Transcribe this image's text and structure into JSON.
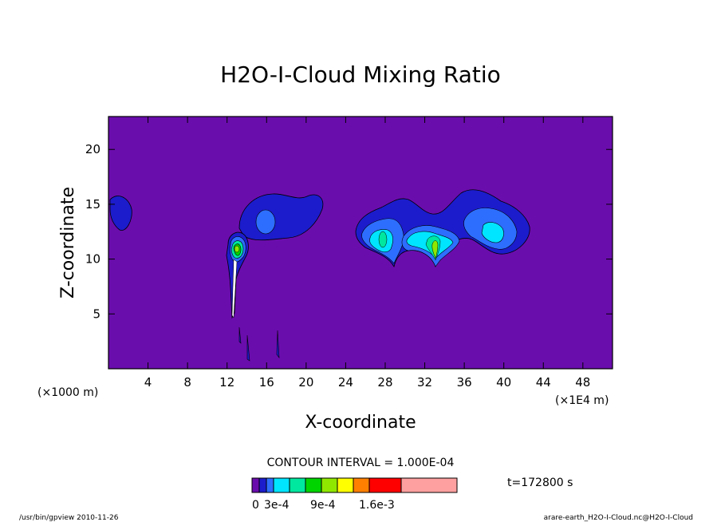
{
  "chart_data": {
    "type": "heatmap",
    "title": "H2O-I-Cloud Mixing Ratio",
    "xlabel": "X-coordinate",
    "ylabel": "Z-coordinate",
    "x_unit_left": "(×1000 m)",
    "x_unit_right": "(×1E4 m)",
    "x_ticks": [
      4,
      8,
      12,
      16,
      20,
      24,
      28,
      32,
      36,
      40,
      44,
      48
    ],
    "y_ticks": [
      5,
      10,
      15,
      20
    ],
    "xlim": [
      0,
      51
    ],
    "ylim": [
      0,
      23
    ],
    "contour_interval_text": "CONTOUR INTERVAL = 1.000E-04",
    "time_text": "t=172800 s",
    "colorbar": {
      "labels": [
        "0",
        "3e-4",
        "9e-4",
        "1.6e-3"
      ],
      "colors": [
        "#6a0dad",
        "#1c1ccc",
        "#2e6eff",
        "#00e5ff",
        "#00e7a0",
        "#00d400",
        "#8fe800",
        "#ffff00",
        "#ff8000",
        "#ff0000",
        "#ffa0a0"
      ]
    },
    "background_value": 0,
    "regions": [
      {
        "name": "left-edge cloud",
        "x": 1.2,
        "z": 13.8,
        "max_level": 1
      },
      {
        "name": "upper cloud sheet",
        "x": 17.5,
        "z": 14.0,
        "max_level": 2
      },
      {
        "name": "convective core",
        "x": 13.0,
        "z": 11.0,
        "max_level": 5
      },
      {
        "name": "anvil cloud 1",
        "x": 28.0,
        "z": 12.5,
        "max_level": 4
      },
      {
        "name": "anvil cloud 2",
        "x": 33.0,
        "z": 11.8,
        "max_level": 5
      },
      {
        "name": "anvil cloud 3",
        "x": 39.0,
        "z": 13.0,
        "max_level": 3
      }
    ]
  },
  "footer": {
    "left": "/usr/bin/gpview  2010-11-26",
    "right": "arare-earth_H2O-I-Cloud.nc@H2O-I-Cloud"
  }
}
